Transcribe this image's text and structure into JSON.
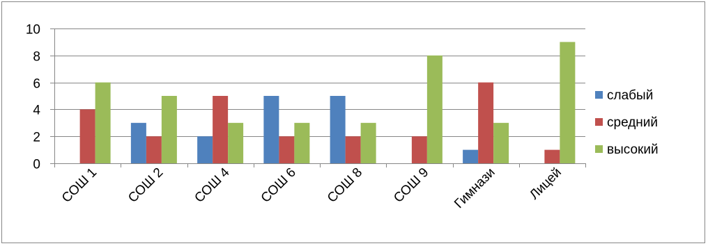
{
  "chart_data": {
    "type": "bar",
    "categories": [
      "СОШ 1",
      "СОШ 2",
      "СОШ 4",
      "СОШ 6",
      "СОШ 8",
      "СОШ 9",
      "Гимнази",
      "Лицей"
    ],
    "series": [
      {
        "name": "слабый",
        "color": "#4F81BD",
        "values": [
          0,
          3,
          2,
          5,
          5,
          0,
          1,
          0
        ]
      },
      {
        "name": "средний",
        "color": "#C0504D",
        "values": [
          4,
          2,
          5,
          2,
          2,
          2,
          6,
          1
        ]
      },
      {
        "name": "высокий",
        "color": "#9BBB59",
        "values": [
          6,
          5,
          3,
          3,
          3,
          8,
          3,
          9
        ]
      }
    ],
    "ylim": [
      0,
      10
    ],
    "yticks": [
      0,
      2,
      4,
      6,
      8,
      10
    ],
    "grid": true,
    "legend": "right",
    "title": "",
    "xlabel": "",
    "ylabel": ""
  }
}
